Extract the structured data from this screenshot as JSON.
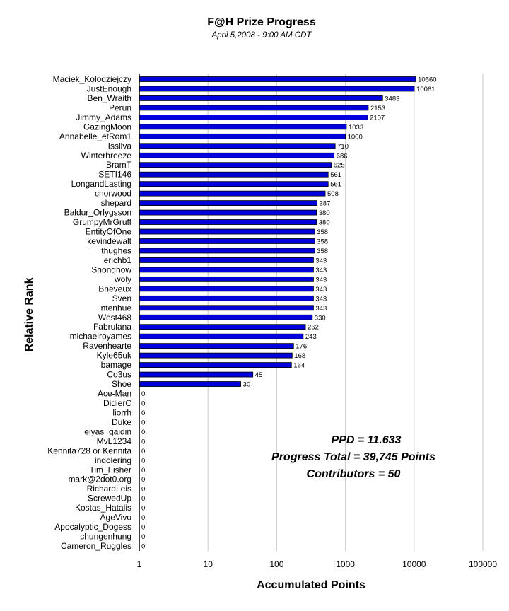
{
  "chart_data": {
    "type": "bar",
    "orientation": "horizontal",
    "title": "F@H Prize Progress",
    "subtitle": "April 5,2008 - 9:00 AM CDT",
    "xlabel": "Accumulated Points",
    "ylabel": "Relative Rank",
    "x_scale": "log",
    "xlim": [
      1,
      100000
    ],
    "x_ticks": [
      "1",
      "10",
      "100",
      "1000",
      "10000",
      "100000"
    ],
    "grid": "vertical",
    "bar_color": "#0000dd",
    "categories": [
      "Maciek_Kolodziejczy",
      "JustEnough",
      "Ben_Wraith",
      "Perun",
      "Jimmy_Adams",
      "GazingMoon",
      "Annabelle_etRom1",
      "Issilva",
      "Winterbreeze",
      "BramT",
      "SETI146",
      "LongandLasting",
      "cnorwood",
      "shepard",
      "Baldur_Orlygsson",
      "GrumpyMrGruff",
      "EntityOfOne",
      "kevindewalt",
      "thughes",
      "erichb1",
      "Shonghow",
      "woly",
      "Bneveux",
      "Sven",
      "ntenhue",
      "West468",
      "Fabrulana",
      "michaelroyames",
      "Ravenhearte",
      "Kyle65uk",
      "bamage",
      "Co3us",
      "Shoe",
      "Ace-Man",
      "DidierC",
      "liorrh",
      "Duke",
      "elyas_gaidin",
      "MvL1234",
      "Kennita728 or Kennita",
      "indolering",
      "Tim_Fisher",
      "mark@2dot0.org",
      "RichardLeis",
      "ScrewedUp",
      "Kostas_Hatalis",
      "AgeVivo",
      "Apocalyptic_Dogess",
      "chungenhung",
      "Cameron_Ruggles"
    ],
    "values": [
      10560,
      10061,
      3483,
      2153,
      2107,
      1033,
      1000,
      710,
      686,
      625,
      561,
      561,
      508,
      387,
      380,
      380,
      358,
      358,
      358,
      343,
      343,
      343,
      343,
      343,
      343,
      330,
      262,
      243,
      176,
      168,
      164,
      45,
      30,
      0,
      0,
      0,
      0,
      0,
      0,
      0,
      0,
      0,
      0,
      0,
      0,
      0,
      0,
      0,
      0,
      0
    ],
    "annotations": [
      "PPD = 11.633",
      "Progress Total = 39,745 Points",
      "Contributors = 50"
    ]
  }
}
